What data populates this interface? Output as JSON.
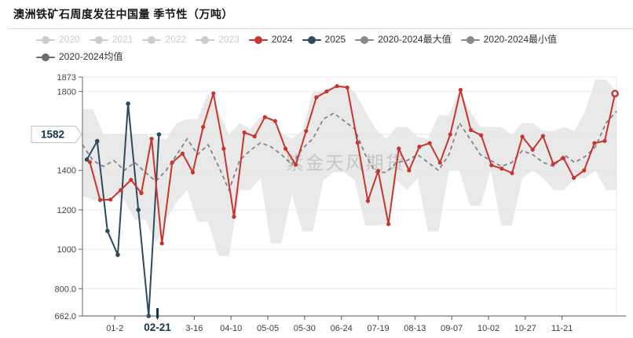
{
  "chart_data": {
    "type": "line",
    "title": "澳洲铁矿石周度发往中国量 季节性（万吨）",
    "watermark": "紫金天风期货",
    "colors": {
      "series_2024": "#c8342e",
      "series_2025": "#2d4a5e",
      "band_fill": "#e4e4e4",
      "mean_line": "#848484",
      "dimmed_legend": "#cccccc",
      "gray_legend": "#8a8a8a",
      "pointer_text": "#17344f",
      "grid_line": "#ebebeb",
      "axis_line": "#666666"
    },
    "x_axis": {
      "ticks": [
        {
          "label": "01-2",
          "day": 22,
          "highlighted": false
        },
        {
          "label": "02-21",
          "day": 51,
          "highlighted": true
        },
        {
          "label": "3-16",
          "day": 76,
          "highlighted": false
        },
        {
          "label": "04-10",
          "day": 101,
          "highlighted": false
        },
        {
          "label": "05-05",
          "day": 126,
          "highlighted": false
        },
        {
          "label": "05-30",
          "day": 151,
          "highlighted": false
        },
        {
          "label": "06-24",
          "day": 176,
          "highlighted": false
        },
        {
          "label": "07-19",
          "day": 201,
          "highlighted": false
        },
        {
          "label": "08-13",
          "day": 226,
          "highlighted": false
        },
        {
          "label": "09-07",
          "day": 251,
          "highlighted": false
        },
        {
          "label": "10-02",
          "day": 276,
          "highlighted": false
        },
        {
          "label": "10-27",
          "day": 301,
          "highlighted": false
        },
        {
          "label": "11-21",
          "day": 326,
          "highlighted": false
        }
      ],
      "pointer_label": "02-21",
      "pointer_day": 51
    },
    "y_axis": {
      "min": 662,
      "max": 1873,
      "ticks": [
        {
          "label": "1873",
          "value": 1873
        },
        {
          "label": "1800",
          "value": 1800
        },
        {
          "label": "1400",
          "value": 1400
        },
        {
          "label": "1200",
          "value": 1200
        },
        {
          "label": "1000",
          "value": 1000
        },
        {
          "label": "800.0",
          "value": 800
        },
        {
          "label": "662.0",
          "value": 662
        }
      ],
      "grid_values": [
        1873,
        1800,
        1400,
        1200,
        1000,
        800
      ],
      "pointer_label": "1582",
      "pointer_value": 1582
    },
    "series": [
      {
        "name": "2020",
        "visible": false,
        "values": []
      },
      {
        "name": "2021",
        "visible": false,
        "values": []
      },
      {
        "name": "2022",
        "visible": false,
        "values": []
      },
      {
        "name": "2023",
        "visible": false,
        "values": []
      },
      {
        "name": "2024",
        "visible": true,
        "kind": "line",
        "start_day": 5,
        "step_days": 7,
        "values": [
          1442,
          1250,
          1252,
          1300,
          1352,
          1285,
          1560,
          1030,
          1440,
          1485,
          1390,
          1620,
          1790,
          1510,
          1165,
          1592,
          1572,
          1670,
          1650,
          1510,
          1429,
          1599,
          1770,
          1800,
          1827,
          1820,
          1540,
          1245,
          1397,
          1128,
          1510,
          1400,
          1520,
          1538,
          1439,
          1582,
          1808,
          1604,
          1578,
          1426,
          1409,
          1386,
          1571,
          1505,
          1574,
          1433,
          1462,
          1362,
          1400,
          1538,
          1549,
          1789
        ]
      },
      {
        "name": "2025",
        "visible": true,
        "kind": "line",
        "start_day": 3,
        "step_days": 7,
        "values": [
          1455,
          1548,
          1093,
          972,
          1738,
          1200,
          662,
          1582
        ]
      },
      {
        "name": "2020-2024最大值",
        "visible": true,
        "kind": "band-top",
        "stretch": true,
        "values": [
          1710,
          1710,
          1582,
          1582,
          1582,
          1582,
          1582,
          1560,
          1560,
          1640,
          1660,
          1660,
          1790,
          1700,
          1582,
          1640,
          1610,
          1670,
          1670,
          1590,
          1560,
          1600,
          1800,
          1800,
          1830,
          1830,
          1800,
          1700,
          1610,
          1560,
          1620,
          1620,
          1570,
          1560,
          1680,
          1680,
          1808,
          1700,
          1620,
          1620,
          1620,
          1580,
          1640,
          1640,
          1600,
          1600,
          1620,
          1600,
          1700,
          1860,
          1860,
          1800
        ]
      },
      {
        "name": "2020-2024最小值",
        "visible": true,
        "kind": "band-bottom",
        "stretch": true,
        "values": [
          1270,
          1250,
          1250,
          1280,
          1250,
          1150,
          1150,
          1030,
          1150,
          1240,
          1300,
          1140,
          1140,
          965,
          965,
          1300,
          1300,
          1360,
          1030,
          1030,
          1280,
          1090,
          1090,
          1350,
          1390,
          1390,
          1350,
          1120,
          1120,
          1128,
          1350,
          1300,
          1360,
          1090,
          1090,
          1400,
          1400,
          1220,
          1220,
          1400,
          1120,
          1120,
          1360,
          1400,
          1360,
          1300,
          1300,
          1360,
          1360,
          1400,
          1300,
          1300
        ]
      },
      {
        "name": "2020-2024均值",
        "visible": true,
        "kind": "dashed-line",
        "stretch": true,
        "values": [
          1530,
          1450,
          1420,
          1450,
          1400,
          1440,
          1390,
          1345,
          1400,
          1480,
          1560,
          1480,
          1530,
          1420,
          1300,
          1450,
          1500,
          1540,
          1520,
          1480,
          1430,
          1510,
          1560,
          1660,
          1690,
          1650,
          1610,
          1480,
          1390,
          1390,
          1440,
          1450,
          1480,
          1440,
          1400,
          1480,
          1640,
          1560,
          1480,
          1450,
          1420,
          1440,
          1500,
          1480,
          1440,
          1420,
          1480,
          1440,
          1470,
          1520,
          1640,
          1700
        ]
      }
    ]
  },
  "legend": {
    "items": [
      {
        "label": "2020",
        "color": "#cccccc",
        "dimmed": true
      },
      {
        "label": "2021",
        "color": "#cccccc",
        "dimmed": true
      },
      {
        "label": "2022",
        "color": "#cccccc",
        "dimmed": true
      },
      {
        "label": "2023",
        "color": "#cccccc",
        "dimmed": true
      },
      {
        "label": "2024",
        "color": "#c8342e",
        "dimmed": false
      },
      {
        "label": "2025",
        "color": "#2d4a5e",
        "dimmed": false
      },
      {
        "label": "2020-2024最大值",
        "color": "#8a8a8a",
        "dimmed": false
      },
      {
        "label": "2020-2024最小值",
        "color": "#8a8a8a",
        "dimmed": false
      },
      {
        "label": "2020-2024均值",
        "color": "#6b6b6b",
        "dimmed": false
      }
    ]
  }
}
